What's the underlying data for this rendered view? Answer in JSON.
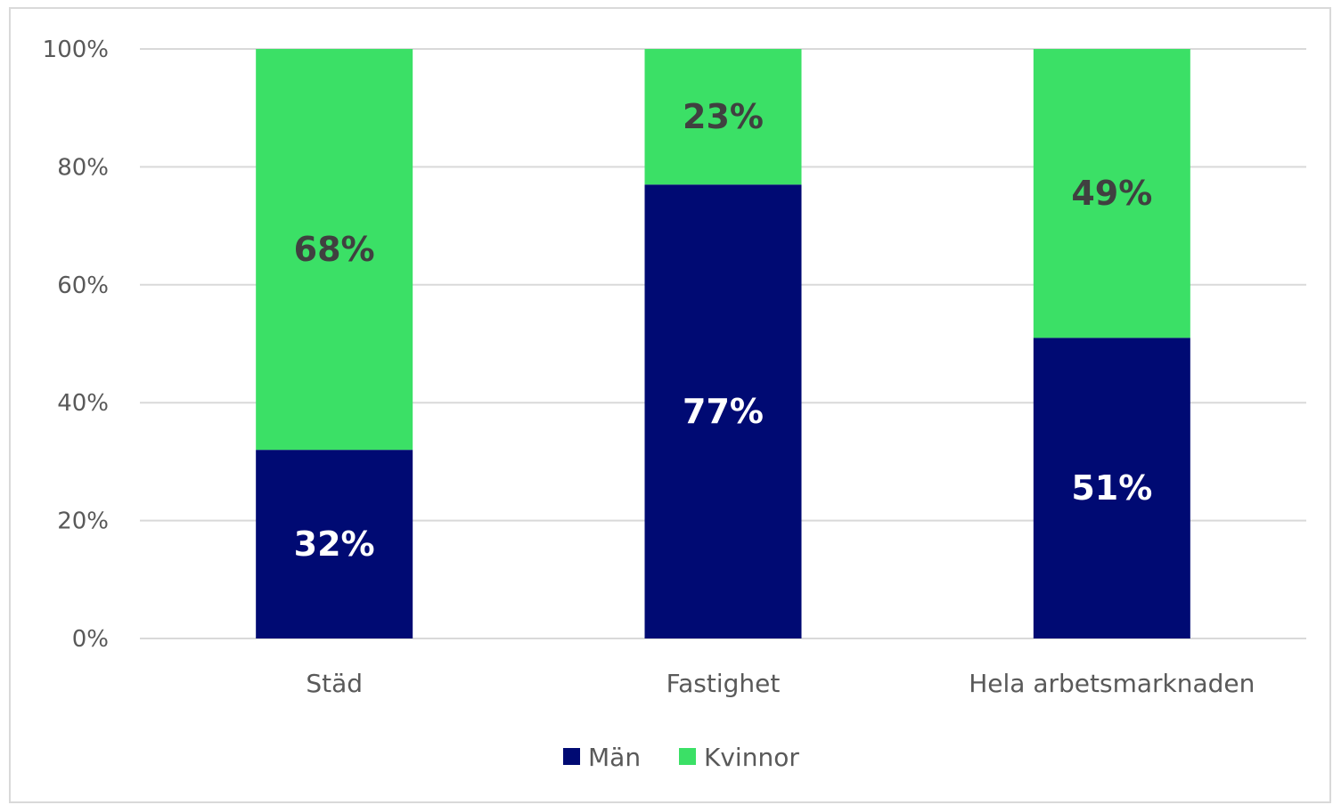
{
  "chart_data": {
    "type": "bar",
    "stacked": true,
    "categories": [
      "Städ",
      "Fastighet",
      "Hela arbetsmarknaden"
    ],
    "series": [
      {
        "name": "Män",
        "color": "#000a73",
        "label_color": "#ffffff",
        "values": [
          32,
          77,
          51
        ],
        "labels": [
          "32%",
          "77%",
          "51%"
        ]
      },
      {
        "name": "Kvinnor",
        "color": "#3be066",
        "label_color": "#404040",
        "values": [
          68,
          23,
          49
        ],
        "labels": [
          "68%",
          "23%",
          "49%"
        ]
      }
    ],
    "ylim": [
      0,
      100
    ],
    "yticks": [
      0,
      20,
      40,
      60,
      80,
      100
    ],
    "ytick_labels": [
      "0%",
      "20%",
      "40%",
      "60%",
      "80%",
      "100%"
    ],
    "grid": true,
    "legend_position": "bottom",
    "gridline_color": "#d9d9d9"
  }
}
